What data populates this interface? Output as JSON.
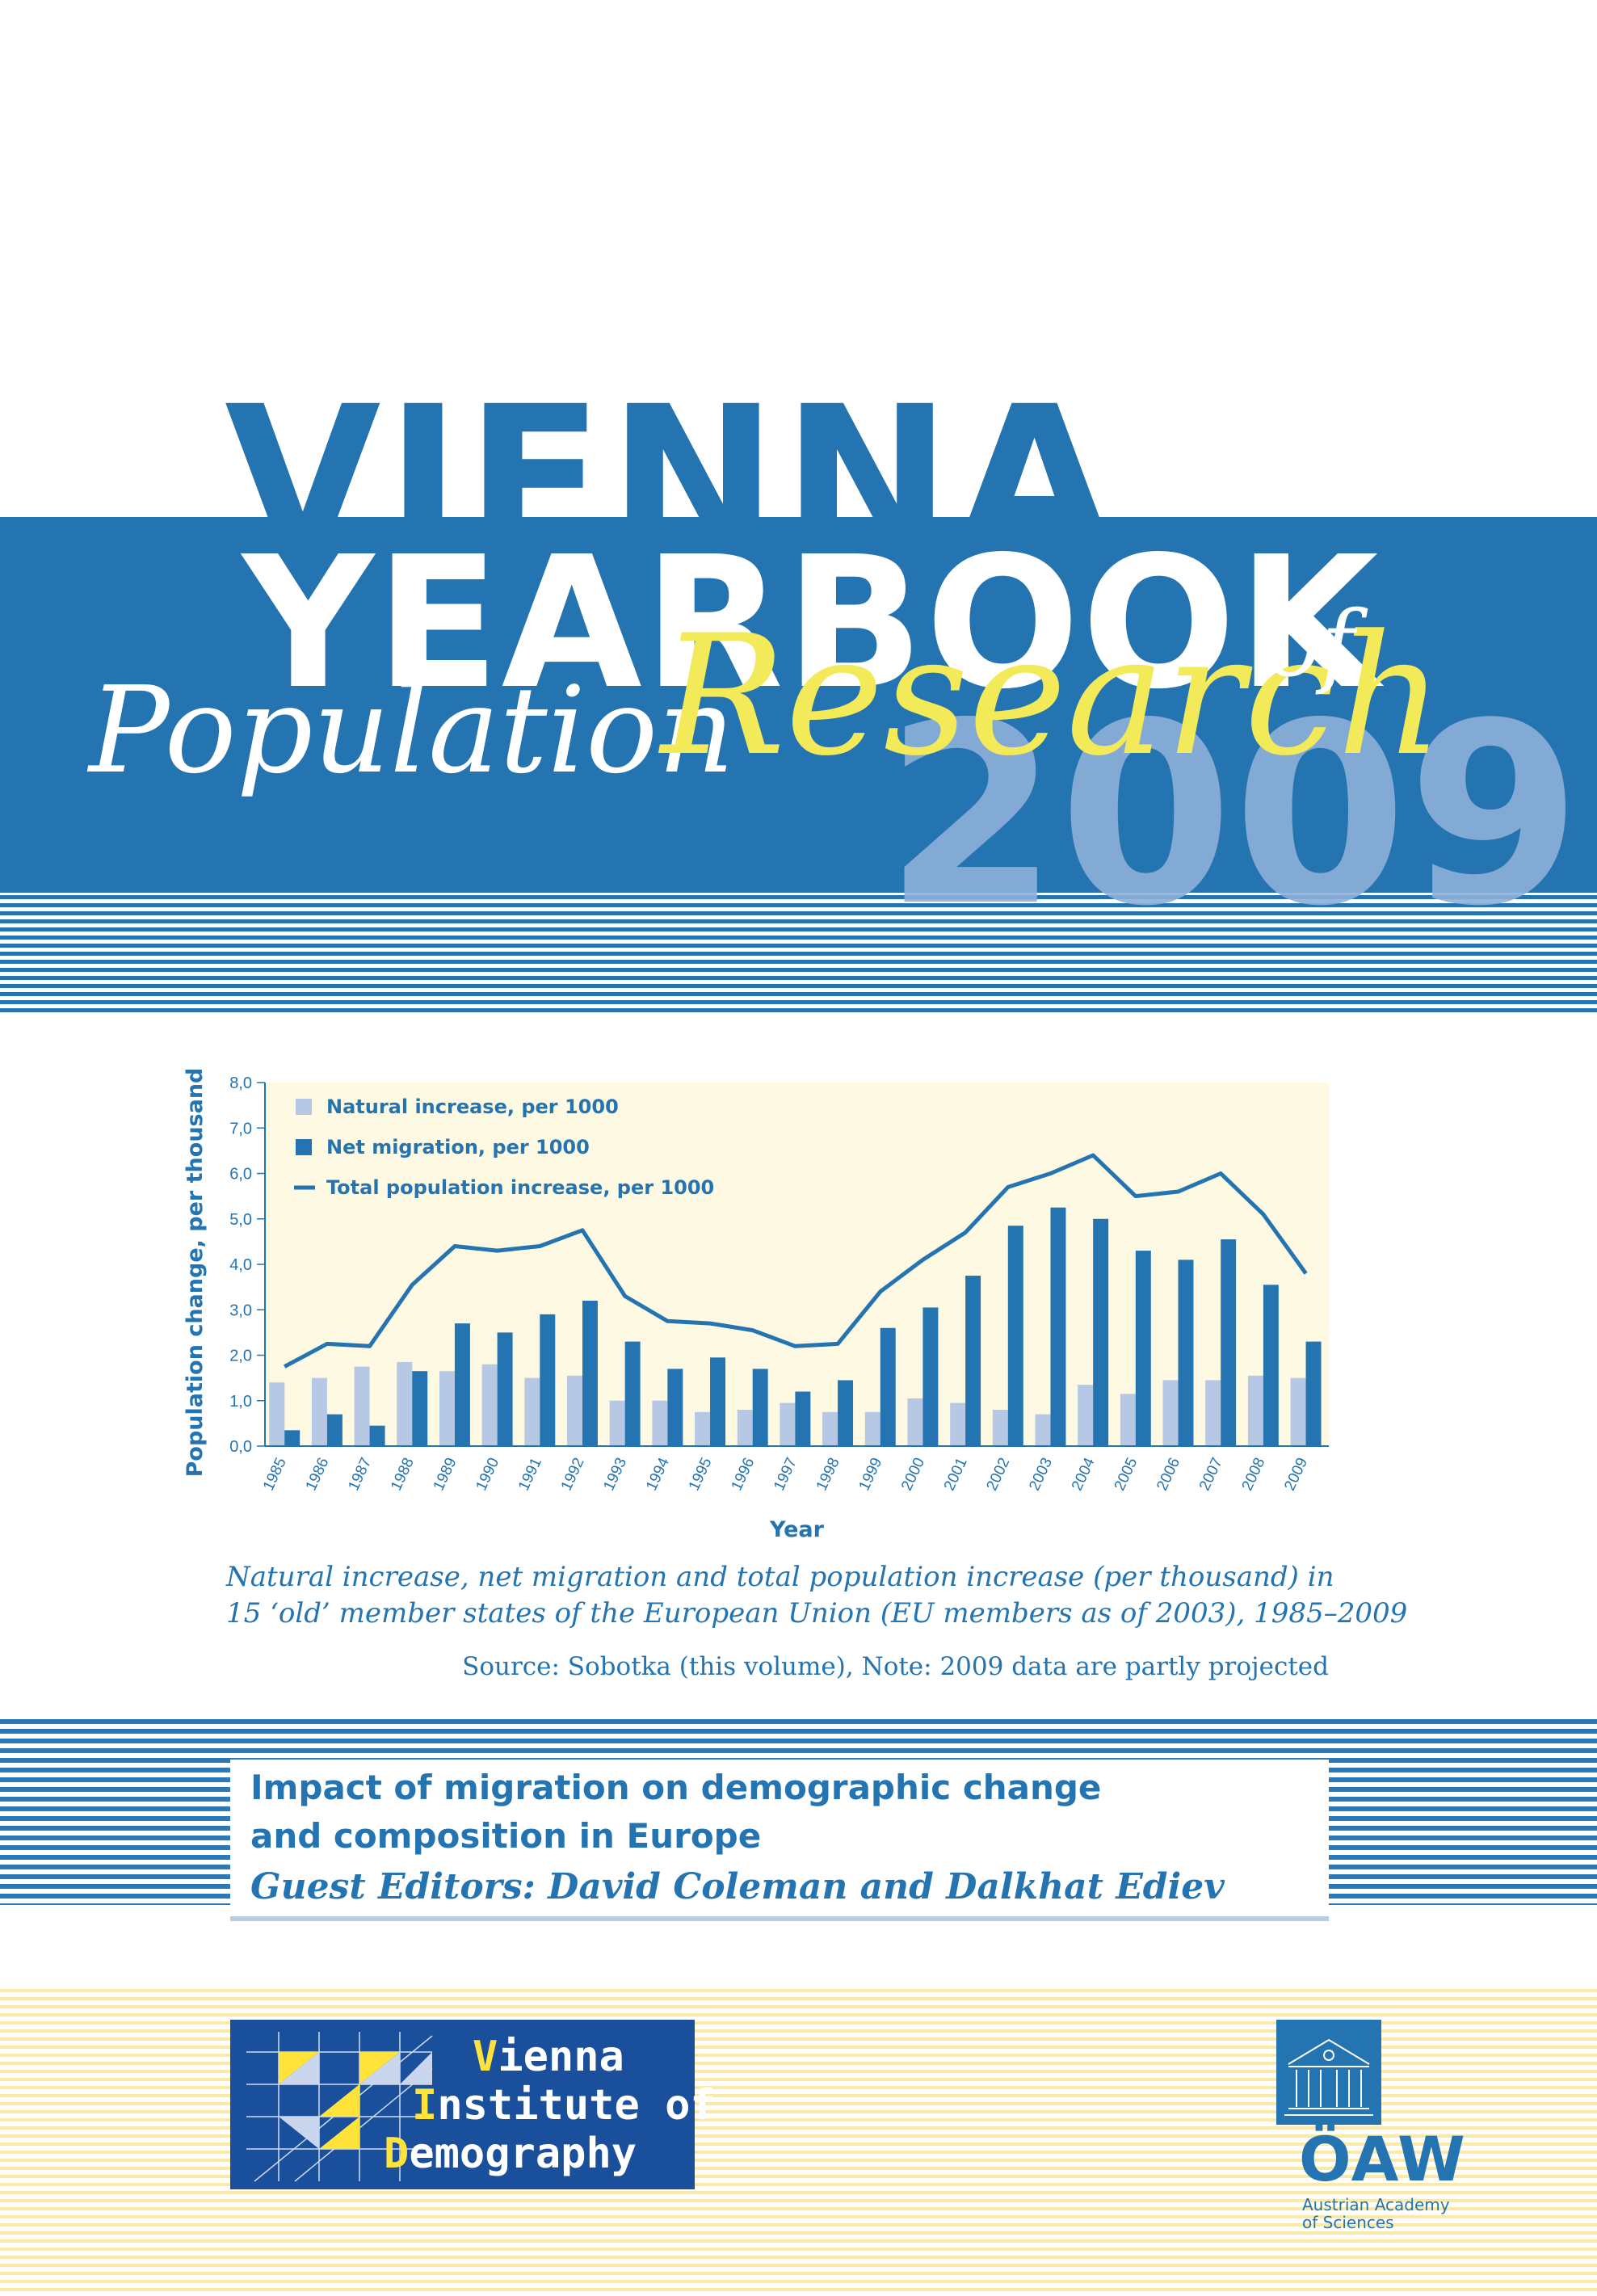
{
  "cover": {
    "title_word1": "VIENNA",
    "title_word2": "YEARBOOK",
    "title_of": "of",
    "title_population": "Population",
    "title_research": "Research",
    "year": "2009"
  },
  "chart_data": {
    "type": "bar",
    "ylabel": "Population change, per thousand",
    "xlabel": "Year",
    "ylim": [
      0,
      8
    ],
    "yticks": [
      "0,0",
      "1,0",
      "2,0",
      "3,0",
      "4,0",
      "5,0",
      "6,0",
      "7,0",
      "8,0"
    ],
    "categories": [
      "1985",
      "1986",
      "1987",
      "1988",
      "1989",
      "1990",
      "1991",
      "1992",
      "1993",
      "1994",
      "1995",
      "1996",
      "1997",
      "1998",
      "1999",
      "2000",
      "2001",
      "2002",
      "2003",
      "2004",
      "2005",
      "2006",
      "2007",
      "2008",
      "2009"
    ],
    "series": [
      {
        "name": "Natural increase, per 1000",
        "kind": "bar",
        "color": "#b7c8e4",
        "values": [
          1.4,
          1.5,
          1.75,
          1.85,
          1.65,
          1.8,
          1.5,
          1.55,
          1.0,
          1.0,
          0.75,
          0.8,
          0.95,
          0.75,
          0.75,
          1.05,
          0.95,
          0.8,
          0.7,
          1.35,
          1.15,
          1.45,
          1.45,
          1.55,
          1.5
        ]
      },
      {
        "name": "Net migration, per 1000",
        "kind": "bar",
        "color": "#2474b1",
        "values": [
          0.35,
          0.7,
          0.45,
          1.65,
          2.7,
          2.5,
          2.9,
          3.2,
          2.3,
          1.7,
          1.95,
          1.7,
          1.2,
          1.45,
          2.6,
          3.05,
          3.75,
          4.85,
          5.25,
          5.0,
          4.3,
          4.1,
          4.55,
          3.55,
          2.3
        ]
      },
      {
        "name": "Total population increase, per 1000",
        "kind": "line",
        "color": "#2474b1",
        "values": [
          1.75,
          2.25,
          2.2,
          3.55,
          4.4,
          4.3,
          4.4,
          4.75,
          3.3,
          2.75,
          2.7,
          2.55,
          2.2,
          2.25,
          3.4,
          4.1,
          4.7,
          5.7,
          6.0,
          6.4,
          5.5,
          5.6,
          6.0,
          5.1,
          3.8
        ]
      }
    ],
    "legend": "top-left",
    "background": "#fdf9e3"
  },
  "caption": {
    "line1": "Natural increase, net migration and total population increase (per thousand) in",
    "line2": "15 ‘old’ member states of the European Union (EU members as of 2003), 1985–2009",
    "source": "Source: Sobotka (this volume), Note: 2009 data are partly projected"
  },
  "theme": {
    "line1": "Impact of migration on demographic change",
    "line2": "and composition in Europe",
    "editors": "Guest Editors: David Coleman and Dalkhat Ediev"
  },
  "vid_logo": {
    "line1_cap": "V",
    "line1_rest": "ienna",
    "line2_cap": "I",
    "line2_rest": "nstitute of",
    "line3_cap": "D",
    "line3_rest": "emography"
  },
  "oaw_logo": {
    "abbr": "ÖAW",
    "line1": "Austrian Academy",
    "line2": "of Sciences"
  }
}
